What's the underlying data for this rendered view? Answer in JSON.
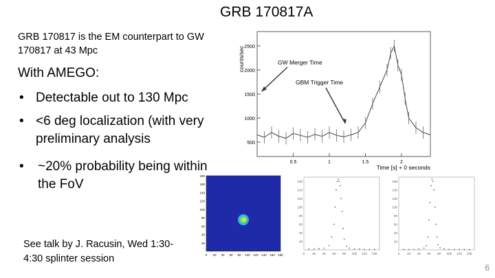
{
  "slide": {
    "title": "GRB 170817A",
    "intro": "GRB 170817 is the EM counterpart to GW 170817 at 43 Mpc",
    "amego_heading": "With AMEGO:",
    "bullets": [
      {
        "marker": "•",
        "text": "Detectable out to 130 Mpc"
      },
      {
        "marker": "•",
        "text": "<6 deg localization (with very preliminary analysis"
      },
      {
        "marker": "•",
        "text": "~20% probability being within the FoV"
      }
    ],
    "talk_note": "See talk by J. Racusin, Wed 1:30-4:30 splinter session",
    "slide_number": "6"
  },
  "colors": {
    "map_background": "#1e2aa8",
    "source_core": "#f4e13a"
  },
  "chart_data": [
    {
      "type": "line",
      "ylabel": "counts/sec",
      "xlabel": "Time [s] + 0 seconds",
      "xlim": [
        0,
        2.4
      ],
      "ylim": [
        200,
        2800
      ],
      "xticks": [
        "0.5",
        "1",
        "1.5",
        "2"
      ],
      "yticks": [
        "500",
        "1000",
        "1500",
        "2000",
        "2500"
      ],
      "annotations": [
        "GW Merger Time",
        "GBM Trigger Time"
      ],
      "series": [
        {
          "x": [
            0.0,
            0.1,
            0.2,
            0.3,
            0.4,
            0.5,
            0.6,
            0.7,
            0.8,
            0.9,
            1.0,
            1.1,
            1.2,
            1.3,
            1.4,
            1.5,
            1.6,
            1.7,
            1.8,
            1.85,
            1.9,
            1.95,
            2.0,
            2.05,
            2.1,
            2.2,
            2.3,
            2.4
          ],
          "values": [
            650,
            600,
            700,
            620,
            580,
            680,
            640,
            600,
            660,
            620,
            700,
            640,
            610,
            650,
            700,
            900,
            1300,
            1650,
            2000,
            2350,
            2500,
            2100,
            1900,
            1400,
            1000,
            800,
            700,
            650
          ]
        }
      ]
    },
    {
      "type": "heatmap",
      "xticks": [
        "0",
        "20",
        "40",
        "60",
        "80",
        "100",
        "120",
        "140",
        "160",
        "180"
      ],
      "yticks": [
        "20",
        "40",
        "60",
        "80",
        "100",
        "120",
        "140",
        "160",
        "180"
      ],
      "xlim": [
        0,
        180
      ],
      "ylim": [
        0,
        180
      ],
      "hotspot": {
        "x": 90,
        "y": 75
      }
    },
    {
      "type": "scatter",
      "xticks": [
        "0",
        "20",
        "40",
        "60",
        "80",
        "100",
        "120",
        "140"
      ],
      "yticks": [
        "20",
        "40",
        "60",
        "80",
        "100",
        "120",
        "140",
        "160"
      ],
      "xlim": [
        0,
        150
      ],
      "ylim": [
        0,
        170
      ],
      "series": [
        {
          "x": [
            10,
            20,
            30,
            40,
            50,
            55,
            60,
            62,
            64,
            66,
            68,
            70,
            72,
            74,
            76,
            78,
            80,
            85,
            90,
            100,
            110,
            120,
            130,
            140
          ],
          "values": [
            2,
            2,
            3,
            4,
            10,
            30,
            60,
            100,
            140,
            160,
            165,
            160,
            150,
            120,
            90,
            50,
            25,
            8,
            4,
            2,
            2,
            1,
            1,
            1
          ]
        }
      ]
    },
    {
      "type": "scatter",
      "xticks": [
        "0",
        "20",
        "40",
        "60",
        "80",
        "100",
        "120",
        "140"
      ],
      "yticks": [
        "20",
        "40",
        "60",
        "80",
        "100",
        "120",
        "140",
        "160"
      ],
      "xlim": [
        0,
        150
      ],
      "ylim": [
        0,
        170
      ],
      "series": [
        {
          "x": [
            10,
            20,
            30,
            40,
            50,
            55,
            58,
            60,
            62,
            64,
            66,
            68,
            70,
            72,
            74,
            76,
            78,
            82,
            90,
            100,
            110,
            120,
            130,
            140
          ],
          "values": [
            1,
            1,
            1,
            2,
            4,
            10,
            30,
            70,
            110,
            150,
            165,
            160,
            140,
            100,
            60,
            30,
            12,
            5,
            2,
            1,
            1,
            1,
            1,
            1
          ]
        }
      ]
    }
  ]
}
